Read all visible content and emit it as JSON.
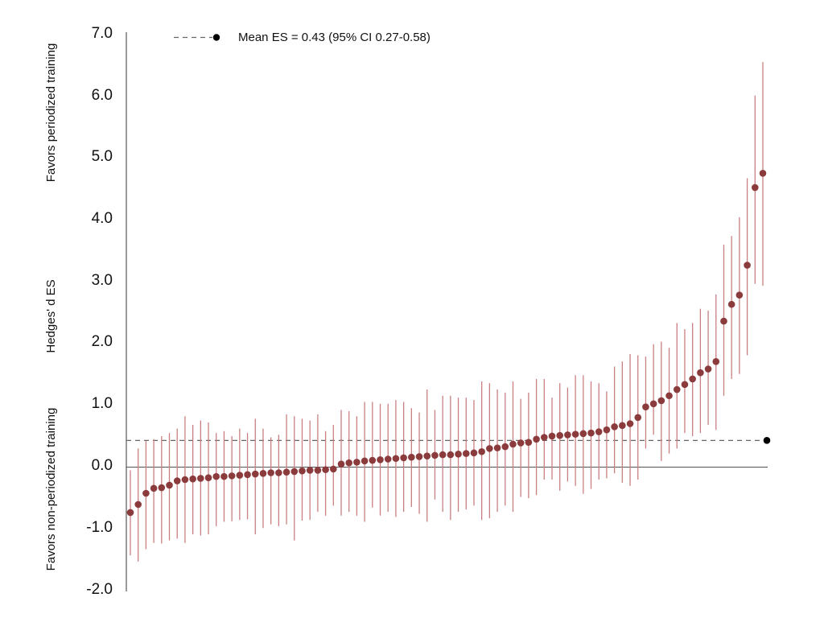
{
  "colors": {
    "point": "#8c3b3d",
    "whisker": "#c97f82",
    "mean": "#000000",
    "mean_line": "#666666",
    "zero_line": "#555555",
    "axis": "#333333"
  },
  "chart_data": {
    "type": "scatter",
    "title": "",
    "xlabel": "",
    "ylabel": "Hedges' d ES",
    "ylabel_top": "Favors periodized training",
    "ylabel_bottom": "Favors non-periodized training",
    "ylim": [
      -2.0,
      7.0
    ],
    "yticks": [
      "7.0",
      "6.0",
      "5.0",
      "4.0",
      "3.0",
      "2.0",
      "1.0",
      "0.0",
      "-1.0",
      "-2.0"
    ],
    "grid": false,
    "legend": {
      "position": "top-left",
      "label": "Mean ES = 0.43 (95% CI 0.27-0.58)"
    },
    "mean": {
      "es": 0.43,
      "ci": [
        0.27,
        0.58
      ]
    },
    "series": [
      {
        "values": [
          -0.73,
          -0.6,
          -0.42,
          -0.34,
          -0.33,
          -0.29,
          -0.22,
          -0.2,
          -0.19,
          -0.18,
          -0.17,
          -0.15,
          -0.15,
          -0.14,
          -0.13,
          -0.12,
          -0.11,
          -0.1,
          -0.09,
          -0.09,
          -0.08,
          -0.07,
          -0.06,
          -0.05,
          -0.05,
          -0.04,
          -0.03,
          0.05,
          0.07,
          0.08,
          0.1,
          0.11,
          0.12,
          0.13,
          0.14,
          0.15,
          0.16,
          0.17,
          0.18,
          0.19,
          0.2,
          0.2,
          0.21,
          0.22,
          0.23,
          0.25,
          0.3,
          0.31,
          0.33,
          0.37,
          0.39,
          0.4,
          0.45,
          0.48,
          0.5,
          0.51,
          0.52,
          0.53,
          0.54,
          0.55,
          0.57,
          0.6,
          0.65,
          0.67,
          0.7,
          0.8,
          0.97,
          1.02,
          1.07,
          1.15,
          1.25,
          1.33,
          1.42,
          1.52,
          1.58,
          1.7,
          2.35,
          2.62,
          2.77,
          3.25,
          4.5,
          4.73
        ],
        "ci_low": [
          -1.42,
          -1.52,
          -1.32,
          -1.22,
          -1.23,
          -1.18,
          -1.15,
          -1.22,
          -1.08,
          -1.1,
          -1.08,
          -0.95,
          -0.88,
          -0.87,
          -0.85,
          -0.84,
          -1.08,
          -0.98,
          -0.92,
          -0.95,
          -0.92,
          -1.18,
          -0.86,
          -0.85,
          -0.72,
          -0.78,
          -0.62,
          -0.78,
          -0.72,
          -0.78,
          -0.88,
          -0.65,
          -0.78,
          -0.72,
          -0.8,
          -0.72,
          -0.64,
          -0.75,
          -0.88,
          -0.52,
          -0.72,
          -0.85,
          -0.72,
          -0.68,
          -0.62,
          -0.85,
          -0.82,
          -0.72,
          -0.62,
          -0.72,
          -0.48,
          -0.5,
          -0.45,
          -0.2,
          -0.2,
          -0.38,
          -0.23,
          -0.3,
          -0.43,
          -0.35,
          -0.2,
          -0.18,
          -0.1,
          -0.25,
          -0.3,
          -0.2,
          0.3,
          0.52,
          0.1,
          0.22,
          0.3,
          0.55,
          0.5,
          0.55,
          0.68,
          0.6,
          1.15,
          1.42,
          1.5,
          1.8,
          2.95,
          2.92
        ],
        "ci_high": [
          -0.05,
          0.3,
          0.42,
          0.45,
          0.5,
          0.55,
          0.62,
          0.82,
          0.68,
          0.75,
          0.72,
          0.55,
          0.58,
          0.5,
          0.62,
          0.55,
          0.78,
          0.62,
          0.48,
          0.52,
          0.85,
          0.82,
          0.78,
          0.75,
          0.85,
          0.58,
          0.68,
          0.92,
          0.9,
          0.82,
          1.05,
          1.05,
          1.02,
          1.02,
          1.08,
          1.05,
          0.95,
          0.88,
          1.25,
          0.92,
          1.15,
          1.15,
          1.12,
          1.12,
          1.08,
          1.38,
          1.35,
          1.25,
          1.2,
          1.38,
          1.1,
          1.2,
          1.42,
          1.42,
          1.12,
          1.35,
          1.28,
          1.48,
          1.48,
          1.38,
          1.35,
          1.22,
          1.62,
          1.7,
          1.82,
          1.8,
          1.78,
          1.98,
          2.02,
          1.92,
          2.32,
          2.22,
          2.32,
          2.55,
          2.52,
          2.78,
          3.58,
          3.72,
          4.02,
          4.65,
          5.98,
          6.52
        ]
      }
    ]
  }
}
